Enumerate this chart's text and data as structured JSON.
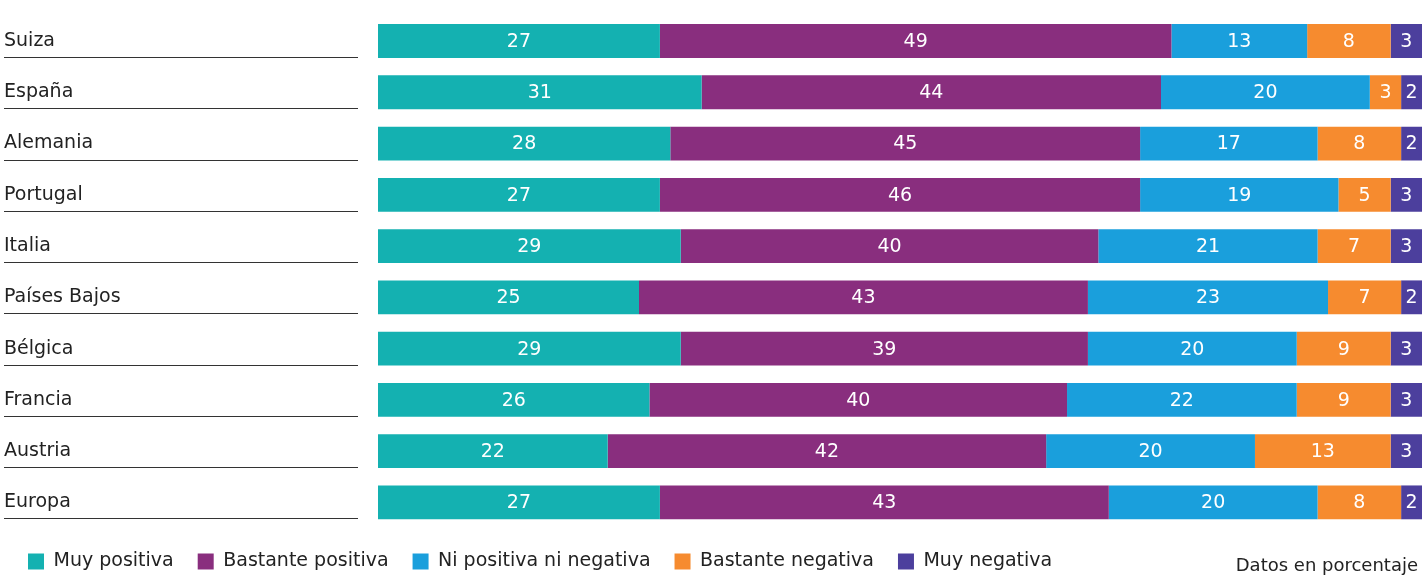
{
  "chart_data": {
    "type": "bar",
    "orientation": "horizontal",
    "stacked": true,
    "data_labels": true,
    "legend": "bottom",
    "grid": false,
    "tick_labels": "y",
    "xlim": [
      0,
      100
    ],
    "categories": [
      "Suiza",
      "España",
      "Alemania",
      "Portugal",
      "Italia",
      "Países Bajos",
      "Bélgica",
      "Francia",
      "Austria",
      "Europa"
    ],
    "series": [
      {
        "name": "Muy positiva",
        "color": "#14b1b1",
        "values": [
          27,
          31,
          28,
          27,
          29,
          25,
          29,
          26,
          22,
          27
        ]
      },
      {
        "name": "Bastante positiva",
        "color": "#892e7e",
        "values": [
          49,
          44,
          45,
          46,
          40,
          43,
          39,
          40,
          42,
          43
        ]
      },
      {
        "name": "Ni positiva ni negativa",
        "color": "#1a9fdc",
        "values": [
          13,
          20,
          17,
          19,
          21,
          23,
          20,
          22,
          20,
          20
        ]
      },
      {
        "name": "Bastante negativa",
        "color": "#f68b2f",
        "values": [
          8,
          3,
          8,
          5,
          7,
          7,
          9,
          9,
          13,
          8
        ]
      },
      {
        "name": "Muy negativa",
        "color": "#4c3f9d",
        "values": [
          3,
          2,
          2,
          3,
          3,
          2,
          3,
          3,
          3,
          2
        ]
      }
    ],
    "annotations": [
      "Datos en porcentaje"
    ]
  }
}
